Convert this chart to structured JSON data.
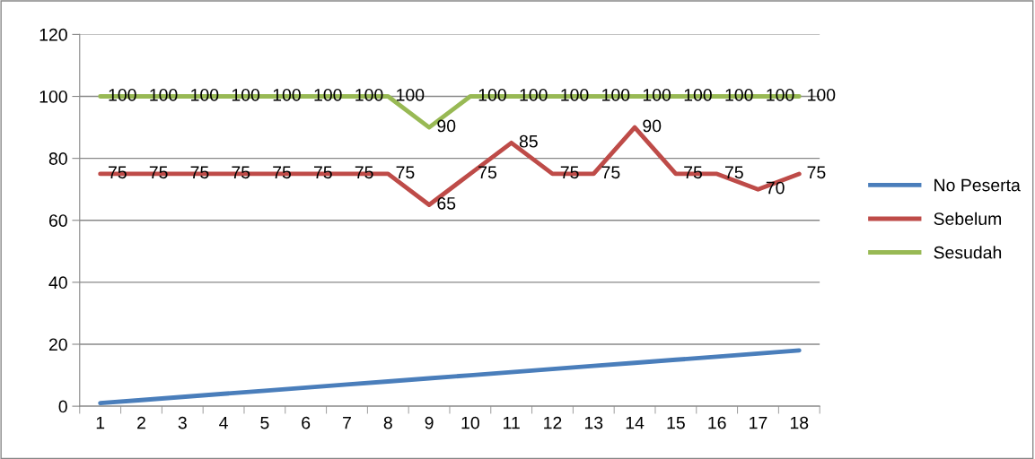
{
  "chart_data": {
    "type": "line",
    "categories": [
      "1",
      "2",
      "3",
      "4",
      "5",
      "6",
      "7",
      "8",
      "9",
      "10",
      "11",
      "12",
      "13",
      "14",
      "15",
      "16",
      "17",
      "18"
    ],
    "series": [
      {
        "name": "No Peserta",
        "color": "#4a7ebb",
        "values": [
          1,
          2,
          3,
          4,
          5,
          6,
          7,
          8,
          9,
          10,
          11,
          12,
          13,
          14,
          15,
          16,
          17,
          18
        ]
      },
      {
        "name": "Sebelum",
        "color": "#be4b48",
        "values": [
          75,
          75,
          75,
          75,
          75,
          75,
          75,
          75,
          65,
          75,
          85,
          75,
          75,
          90,
          75,
          75,
          70,
          75
        ],
        "value_labels": [
          "75",
          "75",
          "75",
          "75",
          "75",
          "75",
          "75",
          "75",
          "65",
          "75",
          "85",
          "75",
          "75",
          "90",
          "75",
          "75",
          "70",
          "75"
        ]
      },
      {
        "name": "Sesudah",
        "color": "#98b954",
        "values": [
          100,
          100,
          100,
          100,
          100,
          100,
          100,
          100,
          90,
          100,
          100,
          100,
          100,
          100,
          100,
          100,
          100,
          100
        ],
        "value_labels": [
          "100",
          "100",
          "100",
          "100",
          "100",
          "100",
          "100",
          "100",
          "90",
          "100",
          "100",
          "100",
          "100",
          "100",
          "100",
          "100",
          "100",
          "100"
        ]
      }
    ],
    "ylim": [
      0,
      120
    ],
    "yticks": [
      0,
      20,
      40,
      60,
      80,
      100,
      120
    ],
    "grid": "y",
    "legend": "right",
    "marker": "none",
    "line_style": "solid"
  }
}
